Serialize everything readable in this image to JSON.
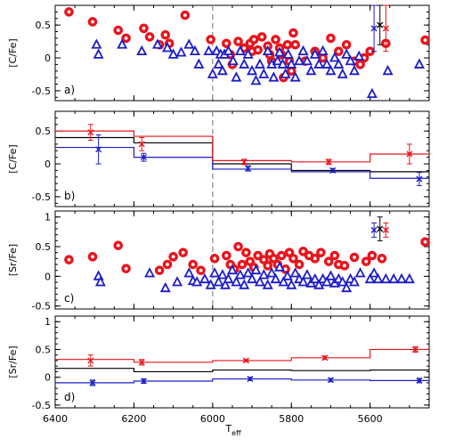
{
  "colors": {
    "red": "#e8141c",
    "blue": "#1c1cc8",
    "black": "#000000",
    "dashed": "#a0a0a0"
  },
  "xaxis": {
    "label": "T",
    "sub": "eff",
    "ticks": [
      "6400",
      "6200",
      "6000",
      "5800",
      "5600"
    ],
    "tick_values": [
      6400,
      6200,
      6000,
      5800,
      5600
    ],
    "range": [
      6400,
      5450
    ],
    "dashed_at": 6000
  },
  "chart_data": [
    {
      "type": "scatter",
      "tag": "a)",
      "ylabel": "[C/Fe]",
      "ylim": [
        -0.65,
        0.8
      ],
      "yticks": [
        0.5,
        0,
        -0.5
      ],
      "series": [
        {
          "marker": "circle",
          "color": "red",
          "points": [
            [
              6365,
              0.7
            ],
            [
              6305,
              0.55
            ],
            [
              6240,
              0.42
            ],
            [
              6220,
              0.3
            ],
            [
              6175,
              0.45
            ],
            [
              6160,
              0.32
            ],
            [
              6135,
              0.2
            ],
            [
              6120,
              0.35
            ],
            [
              6110,
              0.22
            ],
            [
              6070,
              0.65
            ],
            [
              6005,
              0.28
            ],
            [
              5965,
              0.22
            ],
            [
              5955,
              0.05
            ],
            [
              5950,
              -0.1
            ],
            [
              5935,
              0.25
            ],
            [
              5920,
              0.15
            ],
            [
              5905,
              0.22
            ],
            [
              5900,
              0.1
            ],
            [
              5895,
              0.28
            ],
            [
              5885,
              0.12
            ],
            [
              5875,
              0.32
            ],
            [
              5860,
              0.18
            ],
            [
              5855,
              0.05
            ],
            [
              5850,
              -0.05
            ],
            [
              5840,
              0.28
            ],
            [
              5830,
              0.15
            ],
            [
              5825,
              0.05
            ],
            [
              5820,
              -0.3
            ],
            [
              5810,
              0.2
            ],
            [
              5805,
              -0.05
            ],
            [
              5800,
              -0.2
            ],
            [
              5795,
              0.38
            ],
            [
              5790,
              0.2
            ],
            [
              5765,
              -0.05
            ],
            [
              5740,
              0.1
            ],
            [
              5720,
              0.0
            ],
            [
              5700,
              0.3
            ],
            [
              5680,
              0.1
            ],
            [
              5660,
              0.2
            ],
            [
              5640,
              -0.05
            ],
            [
              5625,
              -0.1
            ],
            [
              5615,
              0.0
            ],
            [
              5600,
              0.1
            ],
            [
              5560,
              0.22
            ],
            [
              5460,
              0.27
            ]
          ]
        },
        {
          "marker": "triangle",
          "color": "blue",
          "points": [
            [
              6295,
              0.2
            ],
            [
              6290,
              0.05
            ],
            [
              6230,
              0.2
            ],
            [
              6180,
              0.1
            ],
            [
              6140,
              0.2
            ],
            [
              6115,
              0.15
            ],
            [
              6100,
              0.05
            ],
            [
              6080,
              0.08
            ],
            [
              6060,
              0.2
            ],
            [
              6045,
              0.1
            ],
            [
              6035,
              -0.1
            ],
            [
              6010,
              0.1
            ],
            [
              6000,
              -0.25
            ],
            [
              5990,
              0.1
            ],
            [
              5985,
              -0.1
            ],
            [
              5980,
              0.05
            ],
            [
              5975,
              -0.2
            ],
            [
              5970,
              0.05
            ],
            [
              5960,
              0.1
            ],
            [
              5948,
              -0.05
            ],
            [
              5940,
              -0.3
            ],
            [
              5930,
              0.1
            ],
            [
              5920,
              -0.1
            ],
            [
              5910,
              0.05
            ],
            [
              5900,
              -0.2
            ],
            [
              5890,
              -0.35
            ],
            [
              5880,
              -0.1
            ],
            [
              5870,
              -0.25
            ],
            [
              5860,
              0.1
            ],
            [
              5850,
              -0.1
            ],
            [
              5845,
              -0.3
            ],
            [
              5835,
              -0.05
            ],
            [
              5830,
              0.08
            ],
            [
              5822,
              -0.1
            ],
            [
              5815,
              -0.25
            ],
            [
              5808,
              0.05
            ],
            [
              5800,
              -0.1
            ],
            [
              5790,
              -0.3
            ],
            [
              5780,
              -0.05
            ],
            [
              5770,
              0.1
            ],
            [
              5760,
              -0.05
            ],
            [
              5750,
              -0.2
            ],
            [
              5740,
              0.05
            ],
            [
              5730,
              -0.1
            ],
            [
              5720,
              0.1
            ],
            [
              5710,
              -0.1
            ],
            [
              5700,
              -0.2
            ],
            [
              5690,
              0.0
            ],
            [
              5680,
              -0.1
            ],
            [
              5670,
              -0.25
            ],
            [
              5660,
              0.05
            ],
            [
              5650,
              -0.05
            ],
            [
              5640,
              -0.2
            ],
            [
              5628,
              0.02
            ],
            [
              5595,
              -0.55
            ],
            [
              5555,
              -0.2
            ],
            [
              5475,
              -0.1
            ]
          ]
        }
      ],
      "errorbars": [
        {
          "x": 5590,
          "y": 0.45,
          "err": 0.35,
          "color": "blue"
        },
        {
          "x": 5575,
          "y": 0.5,
          "err": 0.3,
          "color": "black"
        },
        {
          "x": 5560,
          "y": 0.45,
          "err": 0.35,
          "color": "red"
        }
      ]
    },
    {
      "type": "line",
      "tag": "b)",
      "ylabel": "[C/Fe]",
      "ylim": [
        -0.65,
        0.8
      ],
      "yticks": [
        0.5,
        0,
        -0.5
      ],
      "steps": {
        "edges": [
          6400,
          6200,
          6000,
          5800,
          5600,
          5450
        ],
        "red": [
          0.5,
          0.42,
          0.05,
          0.03,
          0.15
        ],
        "black": [
          0.4,
          0.32,
          0.0,
          -0.1,
          -0.12
        ],
        "blue": [
          0.25,
          0.1,
          -0.08,
          -0.12,
          -0.22
        ]
      },
      "points": [
        {
          "x": 6310,
          "y": 0.48,
          "err": 0.12,
          "color": "red"
        },
        {
          "x": 6290,
          "y": 0.22,
          "err": 0.22,
          "color": "blue"
        },
        {
          "x": 6180,
          "y": 0.3,
          "err": 0.1,
          "color": "red"
        },
        {
          "x": 6175,
          "y": 0.1,
          "err": 0.06,
          "color": "blue"
        },
        {
          "x": 5920,
          "y": 0.03,
          "err": 0.04,
          "color": "red"
        },
        {
          "x": 5910,
          "y": -0.07,
          "err": 0.04,
          "color": "blue"
        },
        {
          "x": 5705,
          "y": 0.03,
          "err": 0.04,
          "color": "red"
        },
        {
          "x": 5695,
          "y": -0.1,
          "err": 0.03,
          "color": "blue"
        },
        {
          "x": 5500,
          "y": 0.15,
          "err": 0.15,
          "color": "red"
        },
        {
          "x": 5475,
          "y": -0.23,
          "err": 0.1,
          "color": "blue"
        }
      ]
    },
    {
      "type": "scatter",
      "tag": "c)",
      "ylabel": "[Sr/Fe]",
      "ylim": [
        -0.55,
        1.1
      ],
      "yticks": [
        1,
        0.5,
        0,
        -0.5
      ],
      "series": [
        {
          "marker": "circle",
          "color": "red",
          "points": [
            [
              6365,
              0.28
            ],
            [
              6305,
              0.33
            ],
            [
              6240,
              0.52
            ],
            [
              6220,
              0.13
            ],
            [
              6135,
              0.1
            ],
            [
              6115,
              0.2
            ],
            [
              6100,
              0.33
            ],
            [
              6075,
              0.4
            ],
            [
              6050,
              0.2
            ],
            [
              6030,
              0.1
            ],
            [
              5995,
              0.3
            ],
            [
              5965,
              0.35
            ],
            [
              5955,
              0.2
            ],
            [
              5945,
              0.12
            ],
            [
              5935,
              0.5
            ],
            [
              5925,
              0.2
            ],
            [
              5915,
              0.4
            ],
            [
              5905,
              0.25
            ],
            [
              5895,
              0.15
            ],
            [
              5885,
              0.35
            ],
            [
              5870,
              0.28
            ],
            [
              5860,
              0.18
            ],
            [
              5855,
              0.38
            ],
            [
              5845,
              0.3
            ],
            [
              5835,
              0.2
            ],
            [
              5825,
              0.35
            ],
            [
              5815,
              0.12
            ],
            [
              5805,
              0.4
            ],
            [
              5795,
              0.3
            ],
            [
              5780,
              0.2
            ],
            [
              5770,
              0.42
            ],
            [
              5755,
              0.35
            ],
            [
              5740,
              0.3
            ],
            [
              5725,
              0.4
            ],
            [
              5705,
              0.25
            ],
            [
              5690,
              0.35
            ],
            [
              5680,
              0.2
            ],
            [
              5665,
              0.18
            ],
            [
              5640,
              0.32
            ],
            [
              5610,
              0.25
            ],
            [
              5595,
              0.35
            ],
            [
              5570,
              0.3
            ],
            [
              5460,
              0.58
            ]
          ]
        },
        {
          "marker": "triangle",
          "color": "blue",
          "points": [
            [
              6290,
              0.0
            ],
            [
              6285,
              -0.1
            ],
            [
              6160,
              0.05
            ],
            [
              6120,
              -0.2
            ],
            [
              6090,
              -0.1
            ],
            [
              6060,
              0.05
            ],
            [
              6050,
              -0.08
            ],
            [
              6040,
              -0.1
            ],
            [
              6020,
              -0.05
            ],
            [
              6005,
              -0.15
            ],
            [
              5995,
              0.05
            ],
            [
              5985,
              -0.1
            ],
            [
              5975,
              0.02
            ],
            [
              5968,
              -0.15
            ],
            [
              5960,
              -0.05
            ],
            [
              5950,
              0.1
            ],
            [
              5940,
              -0.1
            ],
            [
              5930,
              0.02
            ],
            [
              5920,
              -0.15
            ],
            [
              5910,
              0.05
            ],
            [
              5900,
              -0.05
            ],
            [
              5890,
              0.1
            ],
            [
              5880,
              -0.1
            ],
            [
              5870,
              0.02
            ],
            [
              5860,
              -0.15
            ],
            [
              5850,
              0.05
            ],
            [
              5840,
              -0.05
            ],
            [
              5830,
              0.15
            ],
            [
              5820,
              -0.1
            ],
            [
              5810,
              0.0
            ],
            [
              5800,
              -0.15
            ],
            [
              5790,
              0.05
            ],
            [
              5780,
              -0.05
            ],
            [
              5770,
              -0.1
            ],
            [
              5760,
              0.02
            ],
            [
              5750,
              -0.12
            ],
            [
              5740,
              -0.05
            ],
            [
              5730,
              -0.15
            ],
            [
              5720,
              -0.05
            ],
            [
              5710,
              -0.1
            ],
            [
              5700,
              0.0
            ],
            [
              5690,
              -0.12
            ],
            [
              5680,
              -0.05
            ],
            [
              5670,
              -0.1
            ],
            [
              5660,
              -0.2
            ],
            [
              5650,
              -0.05
            ],
            [
              5640,
              -0.1
            ],
            [
              5625,
              0.05
            ],
            [
              5600,
              -0.05
            ],
            [
              5590,
              0.05
            ],
            [
              5580,
              -0.05
            ],
            [
              5560,
              -0.05
            ],
            [
              5540,
              -0.05
            ],
            [
              5520,
              -0.05
            ],
            [
              5500,
              -0.05
            ]
          ]
        }
      ],
      "errorbars": [
        {
          "x": 5590,
          "y": 0.78,
          "err": 0.12,
          "color": "blue"
        },
        {
          "x": 5575,
          "y": 0.8,
          "err": 0.2,
          "color": "black"
        },
        {
          "x": 5560,
          "y": 0.78,
          "err": 0.12,
          "color": "red"
        }
      ]
    },
    {
      "type": "line",
      "tag": "d)",
      "ylabel": "[Sr/Fe]",
      "ylim": [
        -0.55,
        1.1
      ],
      "yticks": [
        1,
        0.5,
        0,
        -0.5
      ],
      "steps": {
        "edges": [
          6400,
          6200,
          6000,
          5800,
          5600,
          5450
        ],
        "red": [
          0.32,
          0.27,
          0.3,
          0.35,
          0.5
        ],
        "black": [
          0.16,
          0.1,
          0.13,
          0.12,
          0.13
        ],
        "blue": [
          -0.1,
          -0.07,
          -0.03,
          -0.05,
          -0.06
        ]
      },
      "points": [
        {
          "x": 6310,
          "y": 0.3,
          "err": 0.1,
          "color": "red"
        },
        {
          "x": 6305,
          "y": -0.1,
          "err": 0.05,
          "color": "blue"
        },
        {
          "x": 6180,
          "y": 0.27,
          "err": 0.05,
          "color": "red"
        },
        {
          "x": 6175,
          "y": -0.07,
          "err": 0.04,
          "color": "blue"
        },
        {
          "x": 5915,
          "y": 0.3,
          "err": 0.02,
          "color": "red"
        },
        {
          "x": 5905,
          "y": -0.03,
          "err": 0.03,
          "color": "blue"
        },
        {
          "x": 5715,
          "y": 0.35,
          "err": 0.03,
          "color": "red"
        },
        {
          "x": 5700,
          "y": -0.05,
          "err": 0.03,
          "color": "blue"
        },
        {
          "x": 5485,
          "y": 0.5,
          "err": 0.05,
          "color": "red"
        },
        {
          "x": 5475,
          "y": -0.06,
          "err": 0.04,
          "color": "blue"
        }
      ]
    }
  ]
}
